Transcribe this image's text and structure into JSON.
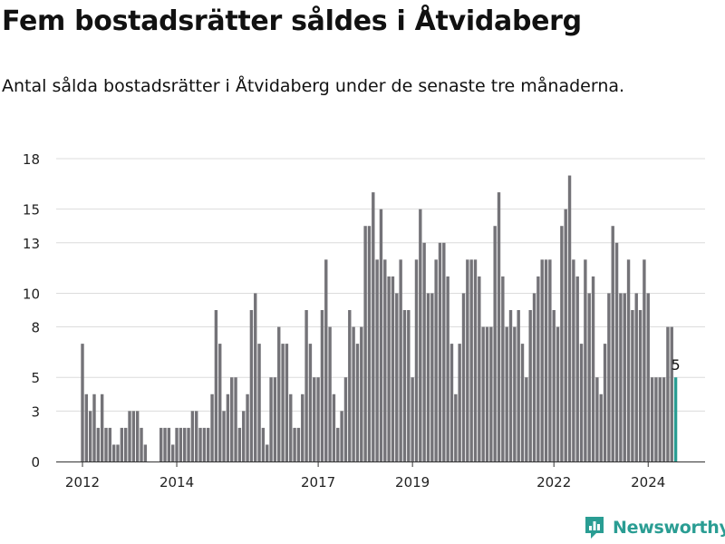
{
  "header": {
    "title": "Fem bostadsrätter såldes i Åtvidaberg",
    "subtitle": "Antal sålda bostadsrätter i Åtvidaberg under de senaste tre månaderna."
  },
  "brand": {
    "name": "Newsworthy",
    "icon": "newsworthy-logo-icon",
    "color": "#2a9d93"
  },
  "colors": {
    "bar": "#747378",
    "highlight": "#2a9d93",
    "grid": "#dcdcdc"
  },
  "chart_data": {
    "type": "bar",
    "title": "",
    "xlabel": "",
    "ylabel": "",
    "ylim": [
      0,
      18
    ],
    "yticks": [
      0,
      3,
      5,
      8,
      10,
      13,
      15,
      18
    ],
    "ytick_labels": [
      "0",
      "3",
      "5",
      "8",
      "10",
      "13",
      "15",
      "18"
    ],
    "xticks": [
      {
        "label": "2012",
        "date": "2012-01"
      },
      {
        "label": "2014",
        "date": "2014-01"
      },
      {
        "label": "2017",
        "date": "2017-01"
      },
      {
        "label": "2019",
        "date": "2019-01"
      },
      {
        "label": "2022",
        "date": "2022-01"
      },
      {
        "label": "2024",
        "date": "2024-01"
      }
    ],
    "x_start": "2012-01",
    "values": [
      7,
      4,
      3,
      4,
      2,
      4,
      2,
      2,
      1,
      1,
      2,
      2,
      3,
      3,
      3,
      2,
      1,
      0,
      0,
      0,
      2,
      2,
      2,
      1,
      2,
      2,
      2,
      2,
      3,
      3,
      2,
      2,
      2,
      4,
      9,
      7,
      3,
      4,
      5,
      5,
      2,
      3,
      4,
      9,
      10,
      7,
      2,
      1,
      5,
      5,
      8,
      7,
      7,
      4,
      2,
      2,
      4,
      9,
      7,
      5,
      5,
      9,
      12,
      8,
      4,
      2,
      3,
      5,
      9,
      8,
      7,
      8,
      14,
      14,
      16,
      12,
      15,
      12,
      11,
      11,
      10,
      12,
      9,
      9,
      5,
      12,
      15,
      13,
      10,
      10,
      12,
      13,
      13,
      11,
      7,
      4,
      7,
      10,
      12,
      12,
      12,
      11,
      8,
      8,
      8,
      14,
      16,
      11,
      8,
      9,
      8,
      9,
      7,
      5,
      9,
      10,
      11,
      12,
      12,
      12,
      9,
      8,
      14,
      15,
      17,
      12,
      11,
      7,
      12,
      10,
      11,
      5,
      4,
      7,
      10,
      14,
      13,
      10,
      10,
      12,
      9,
      10,
      9,
      12,
      10,
      5,
      5,
      5,
      5,
      8,
      8,
      5
    ],
    "highlight_value_label": "5",
    "grid": true,
    "legend": "none"
  }
}
